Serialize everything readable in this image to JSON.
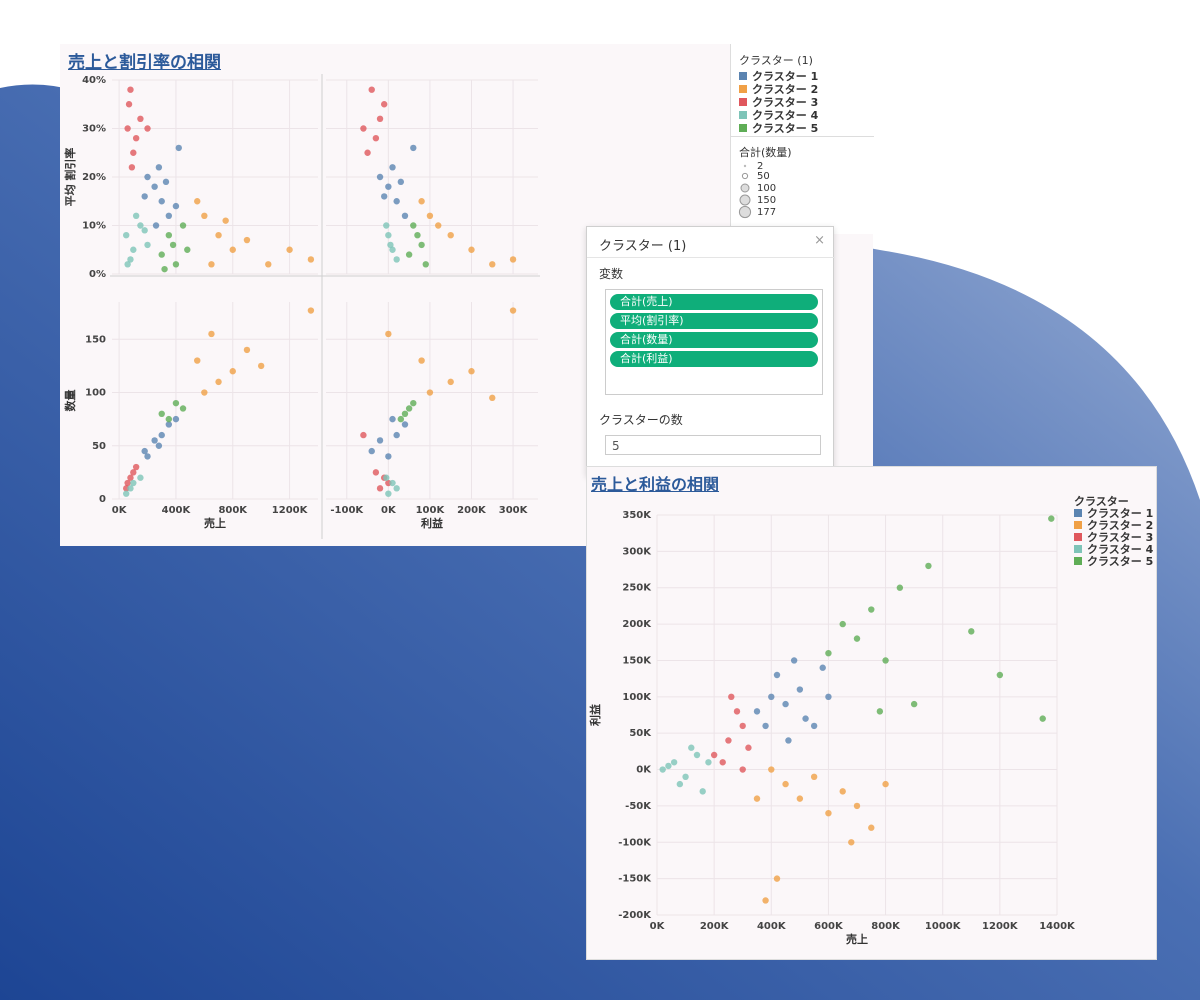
{
  "colors": {
    "cluster1": "#5b84b1",
    "cluster2": "#f0a046",
    "cluster3": "#e0575d",
    "cluster4": "#7ec4b8",
    "cluster5": "#5fad56",
    "title": "#2c5a9a",
    "pill": "#0fae7a"
  },
  "top_chart": {
    "title": "売上と割引率の相関",
    "y_labels": [
      "平均 割引率",
      "数量"
    ],
    "x_labels": [
      "売上",
      "利益"
    ]
  },
  "cluster_legend": {
    "title": "クラスター (1)",
    "items": [
      "クラスター 1",
      "クラスター 2",
      "クラスター 3",
      "クラスター 4",
      "クラスター 5"
    ]
  },
  "size_legend": {
    "title": "合計(数量)",
    "items": [
      "2",
      "50",
      "100",
      "150",
      "177"
    ]
  },
  "dialog": {
    "title": "クラスター (1)",
    "close": "×",
    "variables_label": "変数",
    "variables": [
      "合計(売上)",
      "平均(割引率)",
      "合計(数量)",
      "合計(利益)"
    ],
    "count_label": "クラスターの数",
    "count_value": "5"
  },
  "bottom_chart": {
    "title": "売上と利益の相関",
    "legend_title": "クラスター",
    "legend_items": [
      "クラスター 1",
      "クラスター 2",
      "クラスター 3",
      "クラスター 4",
      "クラスター 5"
    ]
  },
  "chart_data": [
    {
      "type": "scatter",
      "title": "売上と割引率の相関",
      "panel": "売上 vs 平均 割引率",
      "xlabel": "売上",
      "ylabel": "平均 割引率",
      "x_ticks": [
        "0K",
        "400K",
        "800K",
        "1200K"
      ],
      "y_ticks": [
        "0%",
        "10%",
        "20%",
        "30%",
        "40%"
      ],
      "xlim": [
        -50000,
        1400000
      ],
      "ylim": [
        0,
        0.4
      ],
      "series": [
        {
          "name": "クラスター 1",
          "points": [
            [
              250000,
              0.18
            ],
            [
              300000,
              0.15
            ],
            [
              200000,
              0.2
            ],
            [
              350000,
              0.12
            ],
            [
              280000,
              0.22
            ],
            [
              420000,
              0.26
            ],
            [
              180000,
              0.16
            ],
            [
              330000,
              0.19
            ],
            [
              260000,
              0.1
            ],
            [
              400000,
              0.14
            ]
          ]
        },
        {
          "name": "クラスター 2",
          "points": [
            [
              600000,
              0.12
            ],
            [
              700000,
              0.08
            ],
            [
              550000,
              0.15
            ],
            [
              800000,
              0.05
            ],
            [
              650000,
              0.02
            ],
            [
              900000,
              0.07
            ],
            [
              750000,
              0.11
            ],
            [
              1050000,
              0.02
            ],
            [
              1200000,
              0.05
            ],
            [
              1350000,
              0.03
            ]
          ]
        },
        {
          "name": "クラスター 3",
          "points": [
            [
              60000,
              0.3
            ],
            [
              80000,
              0.38
            ],
            [
              120000,
              0.28
            ],
            [
              150000,
              0.32
            ],
            [
              100000,
              0.25
            ],
            [
              70000,
              0.35
            ],
            [
              200000,
              0.3
            ],
            [
              90000,
              0.22
            ]
          ]
        },
        {
          "name": "クラスター 4",
          "points": [
            [
              50000,
              0.08
            ],
            [
              100000,
              0.05
            ],
            [
              150000,
              0.1
            ],
            [
              80000,
              0.03
            ],
            [
              200000,
              0.06
            ],
            [
              120000,
              0.12
            ],
            [
              60000,
              0.02
            ],
            [
              180000,
              0.09
            ]
          ]
        },
        {
          "name": "クラスター 5",
          "points": [
            [
              300000,
              0.04
            ],
            [
              350000,
              0.08
            ],
            [
              400000,
              0.02
            ],
            [
              450000,
              0.1
            ],
            [
              380000,
              0.06
            ],
            [
              320000,
              0.01
            ],
            [
              480000,
              0.05
            ]
          ]
        }
      ]
    },
    {
      "type": "scatter",
      "title": "売上と割引率の相関",
      "panel": "利益 vs 平均 割引率",
      "xlabel": "利益",
      "ylabel": "平均 割引率",
      "x_ticks": [
        "-100K",
        "0K",
        "100K",
        "200K",
        "300K"
      ],
      "y_ticks": [
        "0%",
        "10%",
        "20%",
        "30%",
        "40%"
      ],
      "xlim": [
        -150000,
        360000
      ],
      "ylim": [
        0,
        0.4
      ],
      "series": [
        {
          "name": "クラスター 1",
          "points": [
            [
              0,
              0.18
            ],
            [
              20000,
              0.15
            ],
            [
              -20000,
              0.2
            ],
            [
              40000,
              0.12
            ],
            [
              10000,
              0.22
            ],
            [
              60000,
              0.26
            ],
            [
              -10000,
              0.16
            ],
            [
              30000,
              0.19
            ]
          ]
        },
        {
          "name": "クラスター 2",
          "points": [
            [
              100000,
              0.12
            ],
            [
              150000,
              0.08
            ],
            [
              80000,
              0.15
            ],
            [
              200000,
              0.05
            ],
            [
              250000,
              0.02
            ],
            [
              300000,
              0.03
            ],
            [
              120000,
              0.1
            ]
          ]
        },
        {
          "name": "クラスター 3",
          "points": [
            [
              -60000,
              0.3
            ],
            [
              -40000,
              0.38
            ],
            [
              -30000,
              0.28
            ],
            [
              -20000,
              0.32
            ],
            [
              -50000,
              0.25
            ],
            [
              -10000,
              0.35
            ]
          ]
        },
        {
          "name": "クラスター 4",
          "points": [
            [
              0,
              0.08
            ],
            [
              10000,
              0.05
            ],
            [
              -5000,
              0.1
            ],
            [
              20000,
              0.03
            ],
            [
              5000,
              0.06
            ]
          ]
        },
        {
          "name": "クラスター 5",
          "points": [
            [
              50000,
              0.04
            ],
            [
              70000,
              0.08
            ],
            [
              90000,
              0.02
            ],
            [
              60000,
              0.1
            ],
            [
              80000,
              0.06
            ]
          ]
        }
      ]
    },
    {
      "type": "scatter",
      "title": "売上と割引率の相関",
      "panel": "売上 vs 数量",
      "xlabel": "売上",
      "ylabel": "数量",
      "x_ticks": [
        "0K",
        "400K",
        "800K",
        "1200K"
      ],
      "y_ticks": [
        "0",
        "50",
        "100",
        "150"
      ],
      "xlim": [
        -50000,
        1400000
      ],
      "ylim": [
        0,
        185
      ],
      "series": [
        {
          "name": "クラスター 1",
          "points": [
            [
              200000,
              40
            ],
            [
              250000,
              55
            ],
            [
              300000,
              60
            ],
            [
              350000,
              70
            ],
            [
              180000,
              45
            ],
            [
              400000,
              75
            ],
            [
              280000,
              50
            ]
          ]
        },
        {
          "name": "クラスター 2",
          "points": [
            [
              600000,
              100
            ],
            [
              700000,
              110
            ],
            [
              800000,
              120
            ],
            [
              650000,
              155
            ],
            [
              900000,
              140
            ],
            [
              1000000,
              125
            ],
            [
              1350000,
              177
            ],
            [
              550000,
              130
            ]
          ]
        },
        {
          "name": "クラスター 3",
          "points": [
            [
              50000,
              10
            ],
            [
              80000,
              20
            ],
            [
              100000,
              25
            ],
            [
              60000,
              15
            ],
            [
              120000,
              30
            ]
          ]
        },
        {
          "name": "クラスター 4",
          "points": [
            [
              50000,
              5
            ],
            [
              100000,
              15
            ],
            [
              150000,
              20
            ],
            [
              80000,
              10
            ]
          ]
        },
        {
          "name": "クラスター 5",
          "points": [
            [
              300000,
              80
            ],
            [
              400000,
              90
            ],
            [
              350000,
              75
            ],
            [
              450000,
              85
            ]
          ]
        }
      ]
    },
    {
      "type": "scatter",
      "title": "売上と割引率の相関",
      "panel": "利益 vs 数量",
      "xlabel": "利益",
      "ylabel": "数量",
      "x_ticks": [
        "-100K",
        "0K",
        "100K",
        "200K",
        "300K"
      ],
      "y_ticks": [
        "0",
        "50",
        "100",
        "150"
      ],
      "xlim": [
        -150000,
        360000
      ],
      "ylim": [
        0,
        185
      ],
      "series": [
        {
          "name": "クラスター 1",
          "points": [
            [
              0,
              40
            ],
            [
              -20000,
              55
            ],
            [
              20000,
              60
            ],
            [
              40000,
              70
            ],
            [
              -40000,
              45
            ],
            [
              10000,
              75
            ]
          ]
        },
        {
          "name": "クラスター 2",
          "points": [
            [
              100000,
              100
            ],
            [
              150000,
              110
            ],
            [
              200000,
              120
            ],
            [
              0,
              155
            ],
            [
              250000,
              95
            ],
            [
              300000,
              177
            ],
            [
              80000,
              130
            ]
          ]
        },
        {
          "name": "クラスター 3",
          "points": [
            [
              -20000,
              10
            ],
            [
              -10000,
              20
            ],
            [
              -30000,
              25
            ],
            [
              0,
              15
            ],
            [
              -60000,
              60
            ]
          ]
        },
        {
          "name": "クラスター 4",
          "points": [
            [
              0,
              5
            ],
            [
              10000,
              15
            ],
            [
              -5000,
              20
            ],
            [
              20000,
              10
            ]
          ]
        },
        {
          "name": "クラスター 5",
          "points": [
            [
              40000,
              80
            ],
            [
              60000,
              90
            ],
            [
              30000,
              75
            ],
            [
              50000,
              85
            ]
          ]
        }
      ]
    },
    {
      "type": "scatter",
      "title": "売上と利益の相関",
      "xlabel": "売上",
      "ylabel": "利益",
      "x_ticks": [
        "0K",
        "200K",
        "400K",
        "600K",
        "800K",
        "1000K",
        "1200K",
        "1400K"
      ],
      "y_ticks": [
        "-200K",
        "-150K",
        "-100K",
        "-50K",
        "0K",
        "50K",
        "100K",
        "150K",
        "200K",
        "250K",
        "300K",
        "350K"
      ],
      "xlim": [
        0,
        1400000
      ],
      "ylim": [
        -200000,
        350000
      ],
      "series": [
        {
          "name": "クラスター 1",
          "points": [
            [
              350000,
              80000
            ],
            [
              400000,
              100000
            ],
            [
              450000,
              90000
            ],
            [
              500000,
              110000
            ],
            [
              550000,
              60000
            ],
            [
              600000,
              100000
            ],
            [
              420000,
              130000
            ],
            [
              480000,
              150000
            ],
            [
              520000,
              70000
            ],
            [
              380000,
              60000
            ],
            [
              580000,
              140000
            ],
            [
              460000,
              40000
            ]
          ]
        },
        {
          "name": "クラスター 2",
          "points": [
            [
              400000,
              0
            ],
            [
              450000,
              -20000
            ],
            [
              500000,
              -40000
            ],
            [
              550000,
              -10000
            ],
            [
              600000,
              -60000
            ],
            [
              650000,
              -30000
            ],
            [
              700000,
              -50000
            ],
            [
              750000,
              -80000
            ],
            [
              800000,
              -20000
            ],
            [
              350000,
              -40000
            ],
            [
              380000,
              -180000
            ],
            [
              420000,
              -150000
            ],
            [
              680000,
              -100000
            ]
          ]
        },
        {
          "name": "クラスター 3",
          "points": [
            [
              200000,
              20000
            ],
            [
              250000,
              40000
            ],
            [
              300000,
              60000
            ],
            [
              280000,
              80000
            ],
            [
              230000,
              10000
            ],
            [
              320000,
              30000
            ],
            [
              260000,
              100000
            ],
            [
              300000,
              0
            ]
          ]
        },
        {
          "name": "クラスター 4",
          "points": [
            [
              20000,
              0
            ],
            [
              60000,
              10000
            ],
            [
              100000,
              -10000
            ],
            [
              140000,
              20000
            ],
            [
              80000,
              -20000
            ],
            [
              120000,
              30000
            ],
            [
              160000,
              -30000
            ],
            [
              40000,
              5000
            ],
            [
              180000,
              10000
            ]
          ]
        },
        {
          "name": "クラスター 5",
          "points": [
            [
              600000,
              160000
            ],
            [
              650000,
              200000
            ],
            [
              700000,
              180000
            ],
            [
              750000,
              220000
            ],
            [
              800000,
              150000
            ],
            [
              850000,
              250000
            ],
            [
              950000,
              280000
            ],
            [
              1100000,
              190000
            ],
            [
              1200000,
              130000
            ],
            [
              1350000,
              70000
            ],
            [
              1380000,
              345000
            ],
            [
              900000,
              90000
            ],
            [
              780000,
              80000
            ]
          ]
        }
      ]
    }
  ]
}
